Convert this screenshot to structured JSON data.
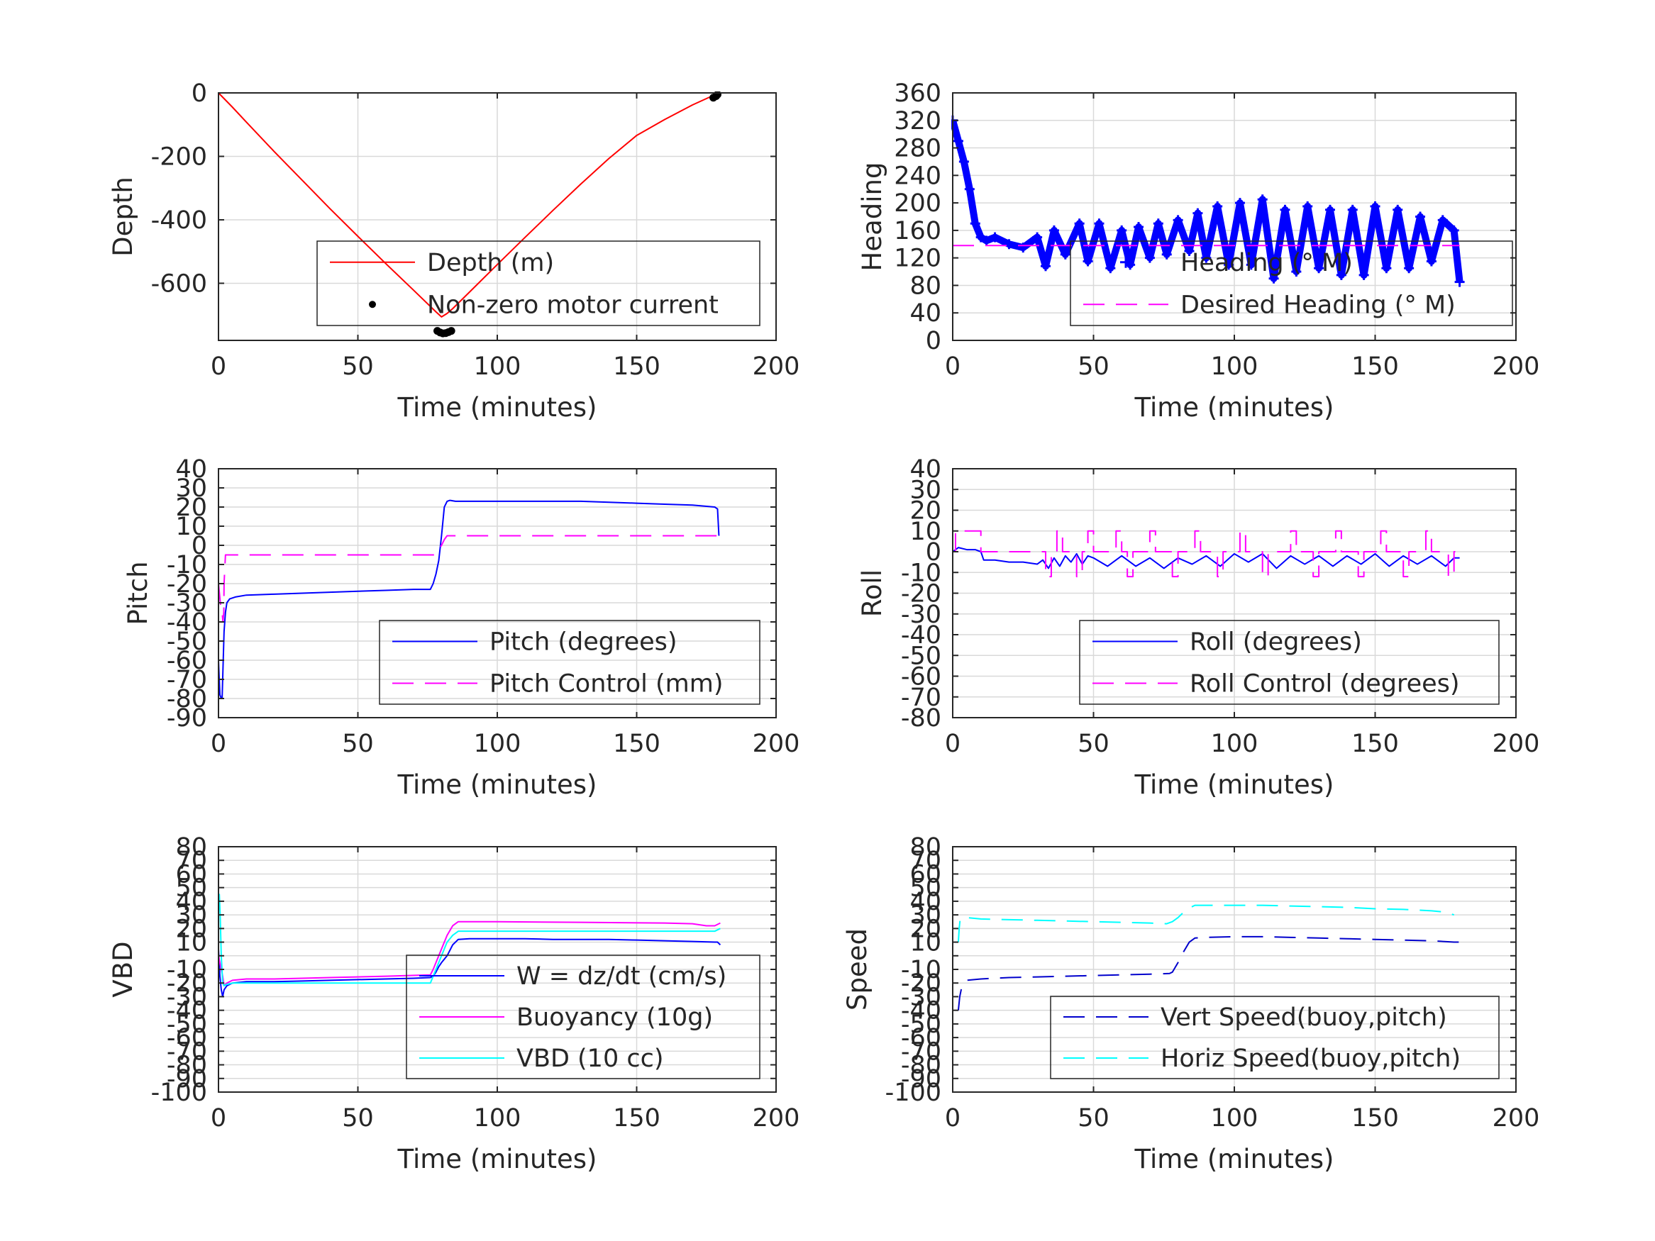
{
  "chart_data": [
    {
      "id": "depth",
      "type": "line",
      "xlabel": "Time (minutes)",
      "ylabel": "Depth",
      "xlim": [
        0,
        200
      ],
      "ylim": [
        -780,
        0
      ],
      "xticks": [
        0,
        50,
        100,
        150,
        200
      ],
      "yticks": [
        0,
        -200,
        -400,
        -600
      ],
      "grid": true,
      "legend_placement": "lower-right",
      "series": [
        {
          "name": "Depth (m)",
          "style": "solid",
          "color": "#ff0000",
          "x": [
            0,
            5,
            10,
            20,
            30,
            40,
            50,
            60,
            70,
            78,
            80,
            82,
            84,
            90,
            100,
            110,
            120,
            130,
            140,
            150,
            160,
            170,
            176,
            179
          ],
          "y": [
            0,
            -45,
            -92,
            -185,
            -275,
            -365,
            -452,
            -538,
            -622,
            -690,
            -706,
            -695,
            -680,
            -628,
            -541,
            -455,
            -370,
            -287,
            -207,
            -134,
            -84,
            -38,
            -14,
            -3
          ]
        },
        {
          "name": "Non-zero motor current",
          "style": "points",
          "color": "#000000",
          "x": [
            78.5,
            79.5,
            80.5,
            81.5,
            82.5,
            83.5,
            177.5,
            178.5,
            179
          ],
          "y": [
            -750,
            -755,
            -758,
            -757,
            -754,
            -750,
            -15,
            -10,
            -5
          ]
        }
      ]
    },
    {
      "id": "heading",
      "type": "line",
      "xlabel": "Time (minutes)",
      "ylabel": "Heading",
      "xlim": [
        0,
        200
      ],
      "ylim": [
        0,
        360
      ],
      "xticks": [
        0,
        50,
        100,
        150,
        200
      ],
      "yticks": [
        0,
        40,
        80,
        120,
        160,
        200,
        240,
        280,
        320,
        360
      ],
      "grid": true,
      "legend_placement": "lower-right",
      "series": [
        {
          "name": "Heading (° M)",
          "style": "markers",
          "color": "#0000ff",
          "x": [
            0,
            2,
            4,
            6,
            8,
            10,
            12,
            15,
            20,
            25,
            30,
            33,
            36,
            40,
            45,
            48,
            52,
            56,
            60,
            63,
            66,
            70,
            73,
            76,
            80,
            84,
            87,
            90,
            94,
            98,
            102,
            106,
            110,
            114,
            118,
            122,
            126,
            130,
            134,
            138,
            142,
            146,
            150,
            154,
            158,
            162,
            166,
            170,
            174,
            178,
            180
          ],
          "y": [
            320,
            290,
            260,
            220,
            170,
            150,
            145,
            150,
            140,
            135,
            150,
            108,
            160,
            125,
            170,
            115,
            170,
            105,
            160,
            110,
            165,
            120,
            170,
            125,
            175,
            130,
            185,
            120,
            195,
            110,
            200,
            110,
            205,
            90,
            190,
            100,
            195,
            105,
            190,
            95,
            190,
            95,
            195,
            105,
            190,
            105,
            180,
            115,
            175,
            160,
            85
          ]
        },
        {
          "name": "Desired Heading (° M)",
          "style": "dashed",
          "color": "#ff00ff",
          "x": [
            0,
            180
          ],
          "y": [
            138,
            138
          ]
        }
      ]
    },
    {
      "id": "pitch",
      "type": "line",
      "xlabel": "Time (minutes)",
      "ylabel": "Pitch",
      "xlim": [
        0,
        200
      ],
      "ylim": [
        -90,
        40
      ],
      "xticks": [
        0,
        50,
        100,
        150,
        200
      ],
      "yticks": [
        40,
        30,
        20,
        10,
        0,
        -10,
        -20,
        -30,
        -40,
        -50,
        -60,
        -70,
        -80,
        -90
      ],
      "grid": true,
      "legend_placement": "lower-right",
      "series": [
        {
          "name": "Pitch (degrees)",
          "style": "solid",
          "color": "#0000ff",
          "x": [
            0,
            0.5,
            1,
            1.3,
            1.6,
            2,
            2.5,
            3,
            4,
            6,
            10,
            20,
            30,
            40,
            50,
            60,
            70,
            76,
            77,
            78,
            79,
            80,
            81,
            82,
            83,
            85,
            90,
            100,
            110,
            120,
            130,
            140,
            150,
            160,
            170,
            178,
            179,
            179.5
          ],
          "y": [
            -60,
            -78,
            -80,
            -80,
            -65,
            -45,
            -35,
            -30,
            -28,
            -27,
            -26,
            -25.5,
            -25,
            -24.5,
            -24,
            -23.5,
            -23,
            -23,
            -20,
            -15,
            -8,
            5,
            20,
            23,
            23.5,
            23,
            23,
            23,
            23,
            23,
            23,
            22.5,
            22,
            21.5,
            21,
            20,
            19,
            5
          ]
        },
        {
          "name": "Pitch Control (mm)",
          "style": "dashed",
          "color": "#ff00ff",
          "x": [
            0,
            1,
            1.3,
            1.6,
            1.9,
            2,
            2.5,
            78,
            79,
            80,
            81,
            82,
            100,
            150,
            180
          ],
          "y": [
            -20,
            -35,
            -35,
            -40,
            -35,
            -20,
            -5,
            -5,
            -2,
            0,
            3,
            5,
            5,
            5,
            5
          ]
        }
      ]
    },
    {
      "id": "roll",
      "type": "line",
      "xlabel": "Time (minutes)",
      "ylabel": "Roll",
      "xlim": [
        0,
        200
      ],
      "ylim": [
        -80,
        40
      ],
      "xticks": [
        0,
        50,
        100,
        150,
        200
      ],
      "yticks": [
        40,
        30,
        20,
        10,
        0,
        -10,
        -20,
        -30,
        -40,
        -50,
        -60,
        -70,
        -80
      ],
      "grid": true,
      "legend_placement": "lower-right",
      "series": [
        {
          "name": "Roll (degrees)",
          "style": "solid",
          "color": "#0000ff",
          "x": [
            0,
            2,
            5,
            8,
            10,
            11,
            15,
            20,
            25,
            30,
            32,
            34,
            36,
            38,
            40,
            42,
            44,
            46,
            48,
            50,
            55,
            60,
            65,
            70,
            75,
            80,
            85,
            90,
            95,
            100,
            105,
            110,
            115,
            120,
            125,
            130,
            135,
            140,
            145,
            150,
            155,
            160,
            165,
            170,
            175,
            178,
            180
          ],
          "y": [
            0,
            2,
            1,
            1,
            0,
            -4,
            -4,
            -5,
            -5,
            -6,
            -4,
            -8,
            -3,
            -7,
            -2,
            -5,
            -1,
            -6,
            -2,
            -3,
            -7,
            -2,
            -7,
            -3,
            -8,
            -3,
            -6,
            -2,
            -7,
            -1,
            -5,
            -1,
            -8,
            -2,
            -6,
            -2,
            -7,
            -2,
            -6,
            -1,
            -7,
            -2,
            -6,
            -2,
            -7,
            -3,
            -3
          ]
        },
        {
          "name": "Roll Control (degrees)",
          "style": "dashed",
          "color": "#ff00ff",
          "x": [
            0,
            1,
            1,
            10,
            10,
            33,
            33,
            35,
            35,
            37,
            37,
            39,
            39,
            44,
            44,
            46,
            46,
            48,
            48,
            50,
            50,
            58,
            58,
            60,
            60,
            62,
            62,
            64,
            64,
            70,
            70,
            72,
            72,
            78,
            78,
            80,
            80,
            86,
            86,
            88,
            88,
            94,
            94,
            96,
            96,
            102,
            102,
            104,
            104,
            110,
            110,
            112,
            112,
            120,
            120,
            122,
            122,
            128,
            128,
            130,
            130,
            136,
            136,
            138,
            138,
            144,
            144,
            146,
            146,
            152,
            152,
            154,
            154,
            160,
            160,
            162,
            162,
            168,
            168,
            170,
            170,
            176,
            176,
            178,
            178,
            180
          ],
          "y": [
            0,
            0,
            10,
            10,
            0,
            0,
            -12,
            -12,
            0,
            0,
            10,
            10,
            0,
            0,
            -12,
            -12,
            0,
            0,
            10,
            10,
            0,
            0,
            10,
            10,
            0,
            0,
            -12,
            -12,
            0,
            0,
            10,
            10,
            0,
            0,
            -12,
            -12,
            0,
            0,
            10,
            10,
            0,
            0,
            -12,
            -12,
            0,
            0,
            10,
            10,
            0,
            0,
            -12,
            -12,
            0,
            0,
            10,
            10,
            0,
            0,
            -12,
            -12,
            0,
            0,
            10,
            10,
            0,
            0,
            -12,
            -12,
            0,
            0,
            10,
            10,
            0,
            0,
            -12,
            -12,
            0,
            0,
            10,
            10,
            0,
            0,
            -12,
            -12,
            0,
            0
          ]
        }
      ]
    },
    {
      "id": "vbd",
      "type": "line",
      "xlabel": "Time (minutes)",
      "ylabel": "VBD",
      "xlim": [
        0,
        200
      ],
      "ylim": [
        -100,
        80
      ],
      "xticks": [
        0,
        50,
        100,
        150,
        200
      ],
      "yticks": [
        80,
        70,
        60,
        50,
        40,
        30,
        20,
        10,
        0,
        -10,
        -20,
        -30,
        -40,
        -50,
        -60,
        -70,
        -80,
        -90,
        -100
      ],
      "yticklabels": [
        "80",
        "70",
        "60",
        "50",
        "40",
        "30",
        "20",
        "10",
        "",
        "-10",
        "-20",
        "-30",
        "-40",
        "-50",
        "-60",
        "-70",
        "-80",
        "-90",
        "-100"
      ],
      "grid": true,
      "legend_placement": "lower-right",
      "series": [
        {
          "name": "W = dz/dt (cm/s)",
          "style": "solid",
          "color": "#0000ff",
          "x": [
            0,
            0.5,
            1,
            1.5,
            2,
            3,
            5,
            10,
            20,
            30,
            40,
            50,
            60,
            70,
            76,
            77,
            78,
            79,
            80,
            82,
            84,
            86,
            90,
            100,
            110,
            120,
            130,
            140,
            150,
            160,
            170,
            178,
            179,
            180
          ],
          "y": [
            5,
            -15,
            -25,
            -30,
            -25,
            -22,
            -20,
            -19,
            -19,
            -18.5,
            -18,
            -17.5,
            -17,
            -16.5,
            -16,
            -15,
            -12,
            -8,
            -5,
            0,
            8,
            12,
            12.5,
            12.5,
            12.5,
            12,
            12,
            12,
            11.5,
            11,
            10.5,
            10,
            10,
            8
          ]
        },
        {
          "name": "Buoyancy (10g)",
          "style": "solid",
          "color": "#ff00ff",
          "x": [
            0,
            1,
            1.5,
            2,
            3,
            5,
            10,
            20,
            40,
            60,
            76,
            77,
            78,
            80,
            82,
            84,
            86,
            100,
            130,
            160,
            170,
            175,
            178,
            180
          ],
          "y": [
            0,
            -10,
            -15,
            -22,
            -20,
            -18,
            -17,
            -17,
            -16,
            -15,
            -14,
            -10,
            -5,
            5,
            15,
            22,
            25,
            25,
            24.5,
            24,
            23.5,
            22,
            22,
            24
          ]
        },
        {
          "name": "VBD (10 cc)",
          "style": "solid",
          "color": "#00ffff",
          "x": [
            0,
            0.3,
            0.6,
            1,
            1.5,
            2,
            3,
            5,
            10,
            40,
            70,
            76,
            77,
            78,
            80,
            82,
            84,
            86,
            100,
            130,
            160,
            175,
            178,
            180
          ],
          "y": [
            40,
            45,
            30,
            0,
            -20,
            -22,
            -21,
            -20,
            -20,
            -20,
            -20,
            -20,
            -15,
            -10,
            0,
            10,
            15,
            18,
            18,
            18,
            18,
            18,
            18,
            20
          ]
        }
      ]
    },
    {
      "id": "speed",
      "type": "line",
      "xlabel": "Time (minutes)",
      "ylabel": "Speed",
      "xlim": [
        0,
        200
      ],
      "ylim": [
        -100,
        80
      ],
      "xticks": [
        0,
        50,
        100,
        150,
        200
      ],
      "yticks": [
        80,
        70,
        60,
        50,
        40,
        30,
        20,
        10,
        0,
        -10,
        -20,
        -30,
        -40,
        -50,
        -60,
        -70,
        -80,
        -90,
        -100
      ],
      "yticklabels": [
        "80",
        "70",
        "60",
        "50",
        "40",
        "30",
        "20",
        "10",
        "",
        "-10",
        "-20",
        "-30",
        "-40",
        "-50",
        "-60",
        "-70",
        "-80",
        "-90",
        "-100"
      ],
      "grid": true,
      "legend_placement": "lower-right",
      "series": [
        {
          "name": "Vert Speed(buoy,pitch)",
          "style": "dashed",
          "color": "#0000cc",
          "x": [
            2,
            2.5,
            3,
            4,
            5,
            10,
            20,
            30,
            40,
            50,
            60,
            70,
            77,
            78,
            80,
            82,
            84,
            86,
            90,
            100,
            110,
            120,
            130,
            140,
            150,
            160,
            170,
            178,
            180
          ],
          "y": [
            -40,
            -30,
            -25,
            -20,
            -18,
            -17,
            -16,
            -15.5,
            -15,
            -14.5,
            -14,
            -13.5,
            -13,
            -12,
            -5,
            3,
            10,
            13,
            13.5,
            14,
            14,
            13.5,
            13,
            12.5,
            12,
            11.5,
            11,
            10,
            10
          ]
        },
        {
          "name": "Horiz Speed(buoy,pitch)",
          "style": "dashed",
          "color": "#00ffff",
          "x": [
            2,
            2.3,
            2.6,
            3,
            5,
            10,
            20,
            30,
            40,
            50,
            60,
            70,
            76,
            78,
            80,
            82,
            84,
            86,
            100,
            110,
            120,
            130,
            140,
            150,
            160,
            170,
            175,
            178
          ],
          "y": [
            10,
            20,
            26,
            28,
            28,
            27,
            26.5,
            26,
            25.5,
            25,
            24.5,
            24,
            23.5,
            25,
            28,
            32,
            35,
            37,
            37,
            37,
            36.5,
            36,
            35.5,
            34.5,
            34,
            33,
            32,
            30
          ]
        }
      ]
    }
  ]
}
